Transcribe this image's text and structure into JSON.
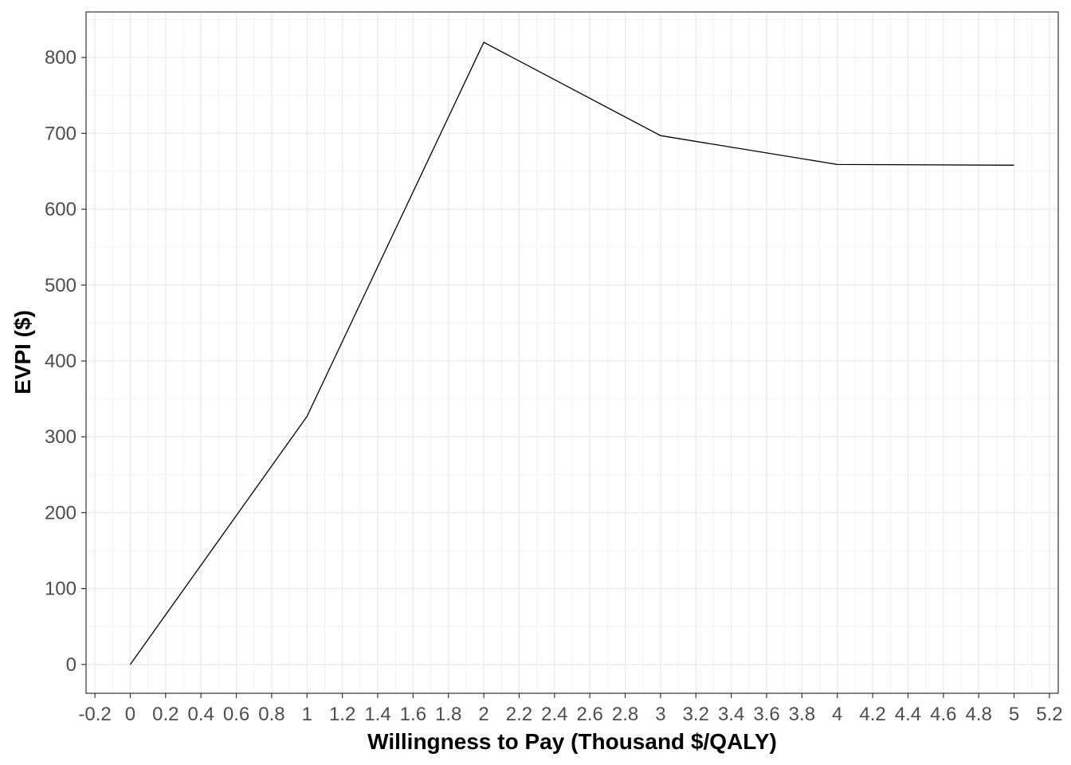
{
  "chart_data": {
    "type": "line",
    "title": "",
    "xlabel": "Willingness to Pay (Thousand $/QALY)",
    "ylabel": "EVPI ($)",
    "xlim": [
      -0.25,
      5.25
    ],
    "ylim": [
      -38,
      860
    ],
    "x_ticks": [
      -0.2,
      0,
      0.2,
      0.4,
      0.6,
      0.8,
      1,
      1.2,
      1.4,
      1.6,
      1.8,
      2,
      2.2,
      2.4,
      2.6,
      2.8,
      3,
      3.2,
      3.4,
      3.6,
      3.8,
      4,
      4.2,
      4.4,
      4.6,
      4.8,
      5,
      5.2
    ],
    "x_tick_labels": [
      "-0.2",
      "0",
      "0.2",
      "0.4",
      "0.6",
      "0.8",
      "1",
      "1.2",
      "1.4",
      "1.6",
      "1.8",
      "2",
      "2.2",
      "2.4",
      "2.6",
      "2.8",
      "3",
      "3.2",
      "3.4",
      "3.6",
      "3.8",
      "4",
      "4.2",
      "4.4",
      "4.6",
      "4.8",
      "5",
      "5.2"
    ],
    "y_ticks": [
      0,
      100,
      200,
      300,
      400,
      500,
      600,
      700,
      800
    ],
    "y_tick_labels": [
      "0",
      "100",
      "200",
      "300",
      "400",
      "500",
      "600",
      "700",
      "800"
    ],
    "grid": true,
    "series": [
      {
        "color": "#000000",
        "x": [
          0,
          1,
          2,
          3,
          4,
          5
        ],
        "y": [
          0,
          327,
          820,
          697,
          659,
          658
        ]
      }
    ]
  }
}
